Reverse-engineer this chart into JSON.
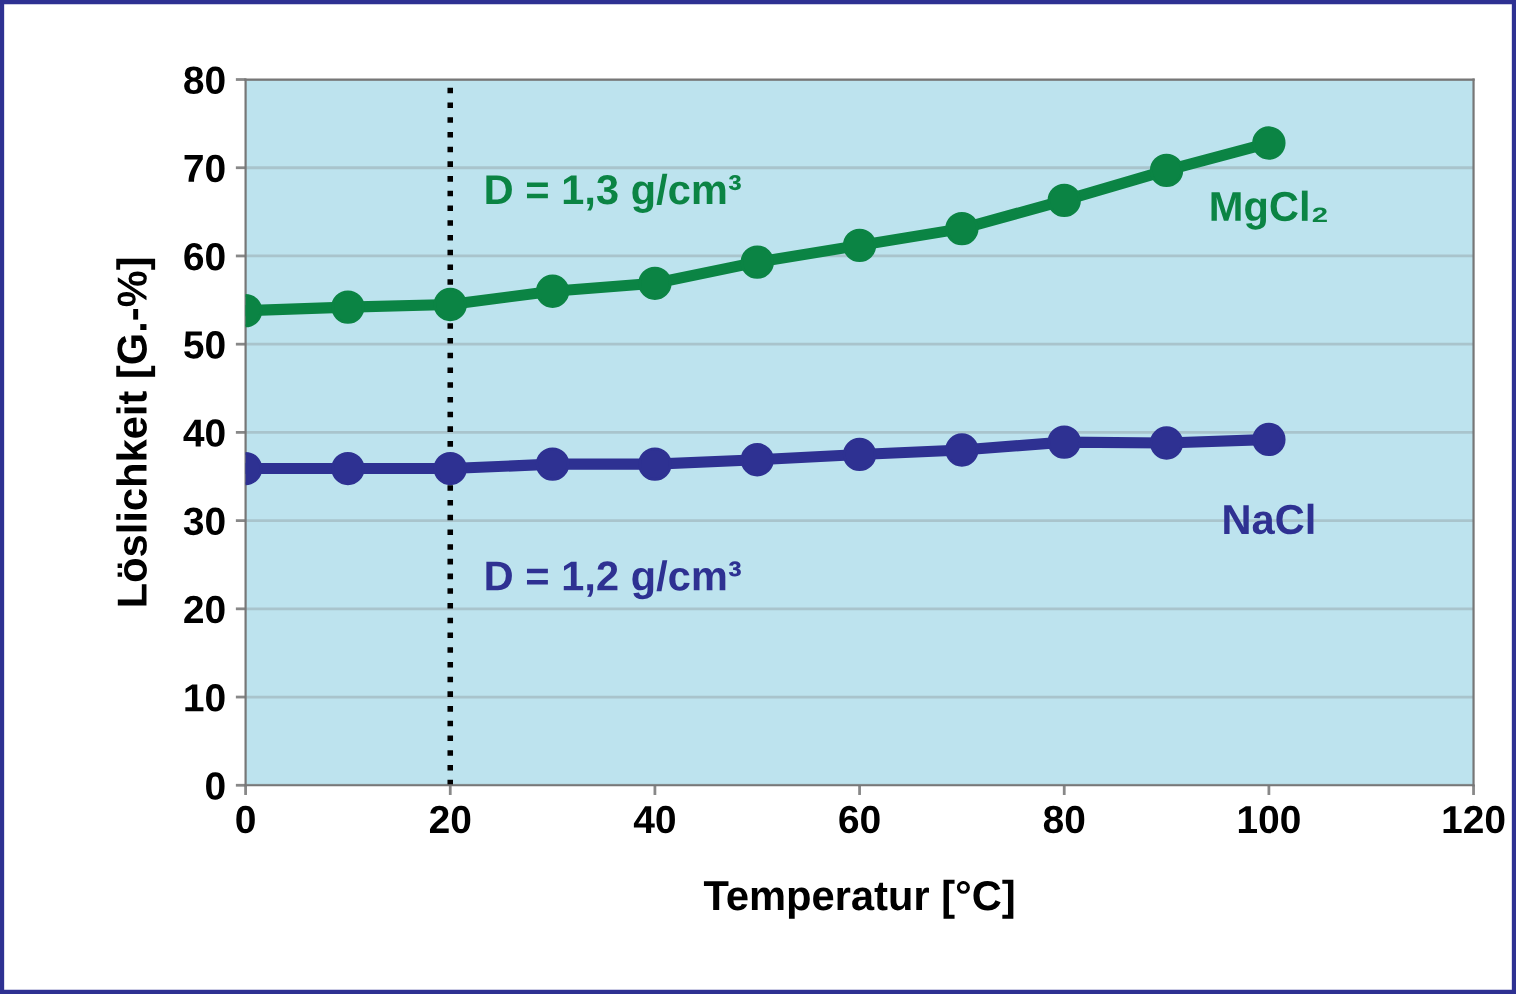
{
  "chart_data": {
    "type": "line",
    "xlabel": "Temperatur [°C]",
    "ylabel": "Löslichkeit [G.-%]",
    "x": [
      0,
      10,
      20,
      30,
      40,
      50,
      60,
      70,
      80,
      90,
      100
    ],
    "series": [
      {
        "name": "MgCl₂",
        "color": "#0b8444",
        "values": [
          53.8,
          54.2,
          54.5,
          56.0,
          56.9,
          59.3,
          61.2,
          63.1,
          66.3,
          69.7,
          72.8
        ]
      },
      {
        "name": "NaCl",
        "color": "#2e3192",
        "values": [
          35.9,
          35.9,
          35.9,
          36.4,
          36.4,
          36.9,
          37.5,
          38.0,
          38.9,
          38.8,
          39.2
        ]
      }
    ],
    "annotations": [
      "D = 1,3 g/cm³",
      "D = 1,2 g/cm³"
    ],
    "ref_lines": [
      {
        "axis": "x",
        "value": 20,
        "color": "#000000",
        "line_style": "dotted"
      }
    ],
    "xlim": [
      0,
      120
    ],
    "xticks": [
      0,
      20,
      40,
      60,
      80,
      100,
      120
    ],
    "ylim": [
      0,
      80
    ],
    "yticks": [
      0,
      10,
      20,
      30,
      40,
      50,
      60,
      70,
      80
    ],
    "grid": "y",
    "marker": "circle",
    "line_style": "solid",
    "legend": false
  }
}
